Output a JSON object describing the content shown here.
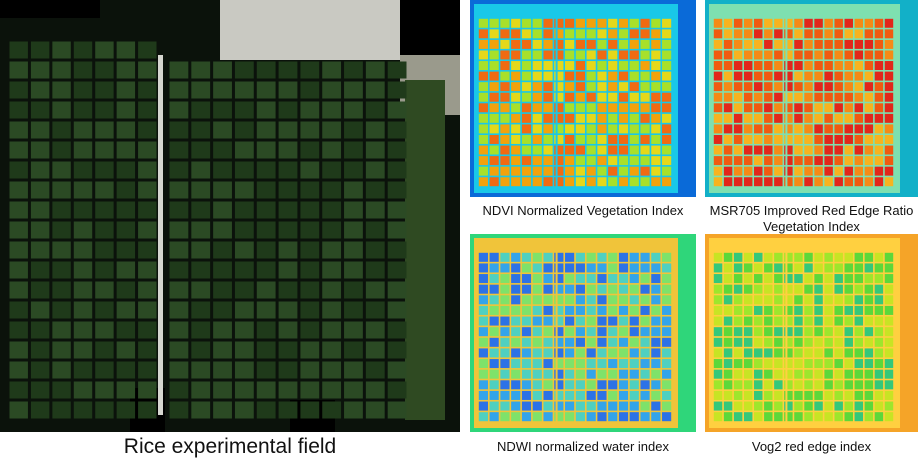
{
  "main": {
    "caption": "Rice experimental field",
    "palette": {
      "ground": "#0b120b",
      "plot": "#1f3a1a",
      "plot_alt": "#2b4a24",
      "road": "#c9c9c2",
      "bare": "#9a9a8c"
    }
  },
  "panels": [
    {
      "id": "ndvi",
      "caption": "NDVI Normalized Vegetation Index",
      "palette": [
        "#f2a20c",
        "#e5d81a",
        "#a8e02a",
        "#f06a12"
      ],
      "bg": "#0a6ad8",
      "edge": "#19c8e8"
    },
    {
      "id": "msr",
      "caption": "MSR705 Improved Red Edge Ratio Vegetation Index",
      "palette": [
        "#f05a10",
        "#f58a16",
        "#e2261a",
        "#f7b31f"
      ],
      "bg": "#12b0c8",
      "edge": "#7ee0b0"
    },
    {
      "id": "ndwi",
      "caption": "NDWI normalized water index",
      "palette": [
        "#2c72e6",
        "#33a4ea",
        "#4fd0c0",
        "#7ee26a"
      ],
      "bg": "#2fd67a",
      "edge": "#f0c43a"
    },
    {
      "id": "vog2",
      "caption": "Vog2 red edge index",
      "palette": [
        "#5cd83a",
        "#9ee62c",
        "#34c87a",
        "#c8e424"
      ],
      "bg": "#f5a428",
      "edge": "#ffd040"
    }
  ]
}
